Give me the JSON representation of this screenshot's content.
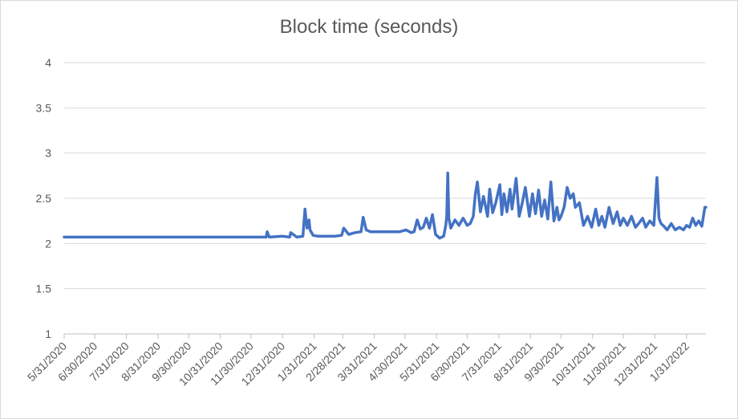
{
  "chart_data": {
    "type": "line",
    "title": "Block time (seconds)",
    "xlabel": "",
    "ylabel": "",
    "ylim": [
      1,
      4
    ],
    "yticks": [
      "1",
      "1.5",
      "2",
      "2.5",
      "3",
      "3.5",
      "4"
    ],
    "xlim": [
      "2020-05-31",
      "2022-02-19"
    ],
    "xticks": [
      "5/31/2020",
      "6/30/2020",
      "7/31/2020",
      "8/31/2020",
      "9/30/2020",
      "10/31/2020",
      "11/30/2020",
      "12/31/2020",
      "1/31/2021",
      "2/28/2021",
      "3/31/2021",
      "4/30/2021",
      "5/31/2021",
      "6/30/2021",
      "7/31/2021",
      "8/31/2021",
      "9/30/2021",
      "10/31/2021",
      "11/30/2021",
      "12/31/2021",
      "1/31/2022"
    ],
    "grid": true,
    "legend": "none",
    "series_color": "#4472c4",
    "series": [
      {
        "x": [
          "2020-05-31",
          "2020-07-01",
          "2020-08-01",
          "2020-09-01",
          "2020-10-01",
          "2020-11-01",
          "2020-12-01",
          "2020-12-15",
          "2020-12-16",
          "2020-12-18",
          "2020-12-31",
          "2021-01-07",
          "2021-01-08",
          "2021-01-14",
          "2021-01-20",
          "2021-01-22",
          "2021-01-24",
          "2021-01-26",
          "2021-01-27",
          "2021-01-30",
          "2021-02-04",
          "2021-02-10",
          "2021-02-20",
          "2021-02-27",
          "2021-03-01",
          "2021-03-06",
          "2021-03-12",
          "2021-03-18",
          "2021-03-20",
          "2021-03-23",
          "2021-03-27",
          "2021-04-05",
          "2021-04-15",
          "2021-04-25",
          "2021-05-01",
          "2021-05-06",
          "2021-05-09",
          "2021-05-12",
          "2021-05-15",
          "2021-05-18",
          "2021-05-21",
          "2021-05-24",
          "2021-05-27",
          "2021-05-30",
          "2021-06-03",
          "2021-06-07",
          "2021-06-09",
          "2021-06-10",
          "2021-06-11",
          "2021-06-12",
          "2021-06-14",
          "2021-06-18",
          "2021-06-22",
          "2021-06-26",
          "2021-06-30",
          "2021-07-03",
          "2021-07-06",
          "2021-07-08",
          "2021-07-10",
          "2021-07-13",
          "2021-07-16",
          "2021-07-20",
          "2021-07-22",
          "2021-07-25",
          "2021-07-28",
          "2021-08-01",
          "2021-08-03",
          "2021-08-05",
          "2021-08-08",
          "2021-08-11",
          "2021-08-13",
          "2021-08-17",
          "2021-08-20",
          "2021-08-23",
          "2021-08-26",
          "2021-08-30",
          "2021-09-02",
          "2021-09-05",
          "2021-09-08",
          "2021-09-11",
          "2021-09-14",
          "2021-09-17",
          "2021-09-20",
          "2021-09-23",
          "2021-09-26",
          "2021-09-28",
          "2021-09-30",
          "2021-10-03",
          "2021-10-06",
          "2021-10-09",
          "2021-10-12",
          "2021-10-14",
          "2021-10-18",
          "2021-10-22",
          "2021-10-26",
          "2021-10-30",
          "2021-11-03",
          "2021-11-06",
          "2021-11-09",
          "2021-11-12",
          "2021-11-16",
          "2021-11-20",
          "2021-11-24",
          "2021-11-27",
          "2021-11-30",
          "2021-12-04",
          "2021-12-08",
          "2021-12-12",
          "2021-12-15",
          "2021-12-19",
          "2021-12-22",
          "2021-12-26",
          "2021-12-30",
          "2022-01-02",
          "2022-01-04",
          "2022-01-06",
          "2022-01-08",
          "2022-01-12",
          "2022-01-16",
          "2022-01-20",
          "2022-01-24",
          "2022-01-28",
          "2022-01-31",
          "2022-02-03",
          "2022-02-06",
          "2022-02-09",
          "2022-02-12",
          "2022-02-15",
          "2022-02-18",
          "2022-02-19"
        ],
        "y": [
          2.07,
          2.07,
          2.07,
          2.07,
          2.07,
          2.07,
          2.07,
          2.07,
          2.13,
          2.07,
          2.08,
          2.07,
          2.12,
          2.07,
          2.08,
          2.38,
          2.17,
          2.26,
          2.15,
          2.09,
          2.08,
          2.08,
          2.08,
          2.09,
          2.17,
          2.1,
          2.12,
          2.13,
          2.29,
          2.15,
          2.13,
          2.13,
          2.13,
          2.13,
          2.15,
          2.12,
          2.13,
          2.26,
          2.16,
          2.18,
          2.28,
          2.17,
          2.32,
          2.1,
          2.06,
          2.08,
          2.2,
          2.3,
          2.78,
          2.28,
          2.17,
          2.26,
          2.2,
          2.28,
          2.2,
          2.22,
          2.3,
          2.55,
          2.68,
          2.35,
          2.52,
          2.3,
          2.6,
          2.34,
          2.45,
          2.65,
          2.32,
          2.55,
          2.35,
          2.6,
          2.38,
          2.72,
          2.3,
          2.45,
          2.62,
          2.3,
          2.55,
          2.33,
          2.59,
          2.3,
          2.48,
          2.27,
          2.68,
          2.25,
          2.4,
          2.26,
          2.3,
          2.4,
          2.62,
          2.5,
          2.55,
          2.4,
          2.45,
          2.2,
          2.3,
          2.18,
          2.38,
          2.2,
          2.3,
          2.18,
          2.4,
          2.22,
          2.35,
          2.2,
          2.28,
          2.2,
          2.3,
          2.18,
          2.22,
          2.28,
          2.18,
          2.25,
          2.2,
          2.73,
          2.28,
          2.22,
          2.2,
          2.15,
          2.22,
          2.15,
          2.18,
          2.15,
          2.2,
          2.18,
          2.28,
          2.2,
          2.25,
          2.19,
          2.4,
          2.4
        ]
      }
    ]
  }
}
